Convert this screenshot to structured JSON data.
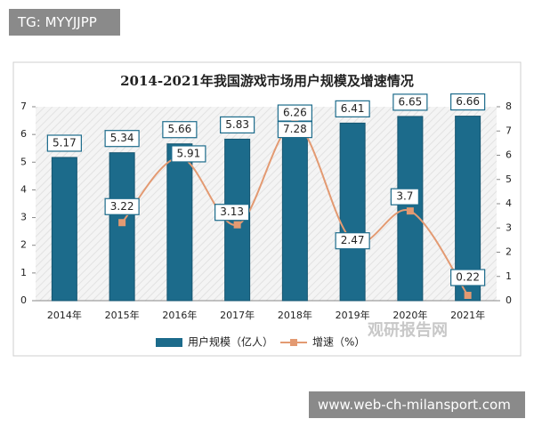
{
  "header": {
    "tag": "TG: MYYJJPP"
  },
  "chart_data": {
    "type": "bar",
    "title": "2014-2021年我国游戏市场用户规模及增速情况",
    "categories": [
      "2014年",
      "2015年",
      "2016年",
      "2017年",
      "2018年",
      "2019年",
      "2020年",
      "2021年"
    ],
    "series": [
      {
        "name": "用户规模（亿人）",
        "type": "bar",
        "color": "#1c6b8b",
        "values": [
          5.17,
          5.34,
          5.66,
          5.83,
          6.26,
          6.41,
          6.65,
          6.66
        ]
      },
      {
        "name": "增速（%）",
        "type": "line",
        "axis": "y2",
        "color": "#e39a72",
        "values": [
          null,
          3.22,
          5.91,
          3.13,
          7.28,
          2.47,
          3.7,
          0.22
        ]
      }
    ],
    "ylim": [
      0,
      7
    ],
    "yticks": [
      0,
      1,
      2,
      3,
      4,
      5,
      6,
      7
    ],
    "y2lim": [
      0,
      8
    ],
    "y2ticks": [
      0,
      1,
      2,
      3,
      4,
      5,
      6,
      7,
      8
    ],
    "watermark": "观研报告网"
  },
  "footer": {
    "url": "www.web-ch-milansport.com"
  }
}
